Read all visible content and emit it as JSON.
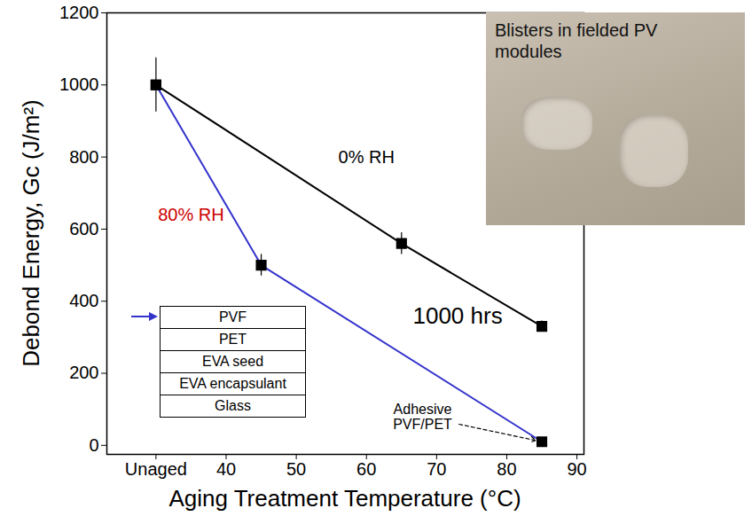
{
  "chart_data": {
    "type": "line",
    "x_label": "Aging Treatment Temperature (°C)",
    "y_label": "Debond Energy, Gc (J/m²)",
    "xlim": [
      23,
      91
    ],
    "ylim": [
      -25,
      1200
    ],
    "xticks": [
      {
        "value": 30,
        "label": "Unaged"
      },
      40,
      50,
      60,
      70,
      80,
      90
    ],
    "yticks": [
      0,
      200,
      400,
      600,
      800,
      1000,
      1200
    ],
    "series": [
      {
        "name": "0% RH",
        "color": "#000000",
        "marker": "square",
        "x": [
          30,
          65,
          85
        ],
        "values": [
          1000,
          560,
          330
        ],
        "errors": [
          75,
          30,
          15
        ],
        "label": {
          "x": 60,
          "y": 800,
          "color": "#000000"
        }
      },
      {
        "name": "80% RH",
        "color": "#3333cc",
        "marker": "square",
        "x": [
          30,
          45,
          85
        ],
        "values": [
          1000,
          500,
          10
        ],
        "errors": [
          null,
          30,
          null
        ],
        "label": {
          "x": 35,
          "y": 640,
          "color": "#cc0000"
        }
      }
    ],
    "annotations": [
      {
        "text": "1000 hrs",
        "x": 73,
        "y": 360
      },
      {
        "text": "Adhesive\nPVF/PET",
        "x": 68,
        "y": 80,
        "arrow_to": {
          "x": 85,
          "y": 10
        }
      }
    ],
    "inset_stack": {
      "layers": [
        "PVF",
        "PET",
        "EVA seed",
        "EVA encapsulant",
        "Glass"
      ],
      "arrow_color": "#3333cc"
    },
    "inset_photo": {
      "text": "Blisters in fielded PV modules"
    }
  }
}
